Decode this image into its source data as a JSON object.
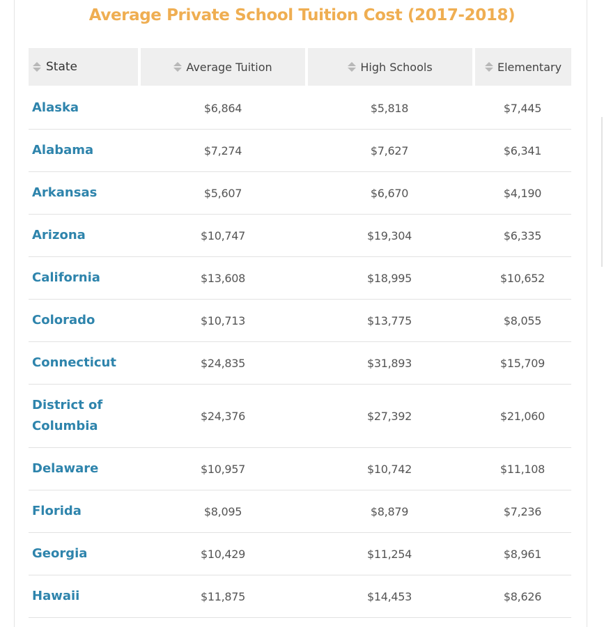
{
  "title": "Average Private School Tuition Cost (2017-2018)",
  "colors": {
    "title": "#efae52",
    "state_link": "#2e84ac",
    "header_bg": "#efefef",
    "row_divider": "#e2e2e2"
  },
  "table": {
    "headers": {
      "state": "State",
      "average_tuition": "Average Tuition",
      "high_schools": "High Schools",
      "elementary": "Elementary"
    },
    "rows": [
      {
        "state": "Alaska",
        "average": "$6,864",
        "high": "$5,818",
        "elementary": "$7,445"
      },
      {
        "state": "Alabama",
        "average": "$7,274",
        "high": "$7,627",
        "elementary": "$6,341"
      },
      {
        "state": "Arkansas",
        "average": "$5,607",
        "high": "$6,670",
        "elementary": "$4,190"
      },
      {
        "state": "Arizona",
        "average": "$10,747",
        "high": "$19,304",
        "elementary": "$6,335"
      },
      {
        "state": "California",
        "average": "$13,608",
        "high": "$18,995",
        "elementary": "$10,652"
      },
      {
        "state": "Colorado",
        "average": "$10,713",
        "high": "$13,775",
        "elementary": "$8,055"
      },
      {
        "state": "Connecticut",
        "average": "$24,835",
        "high": "$31,893",
        "elementary": "$15,709"
      },
      {
        "state": "District of Columbia",
        "average": "$24,376",
        "high": "$27,392",
        "elementary": "$21,060"
      },
      {
        "state": "Delaware",
        "average": "$10,957",
        "high": "$10,742",
        "elementary": "$11,108"
      },
      {
        "state": "Florida",
        "average": "$8,095",
        "high": "$8,879",
        "elementary": "$7,236"
      },
      {
        "state": "Georgia",
        "average": "$10,429",
        "high": "$11,254",
        "elementary": "$8,961"
      },
      {
        "state": "Hawaii",
        "average": "$11,875",
        "high": "$14,453",
        "elementary": "$8,626"
      }
    ]
  }
}
